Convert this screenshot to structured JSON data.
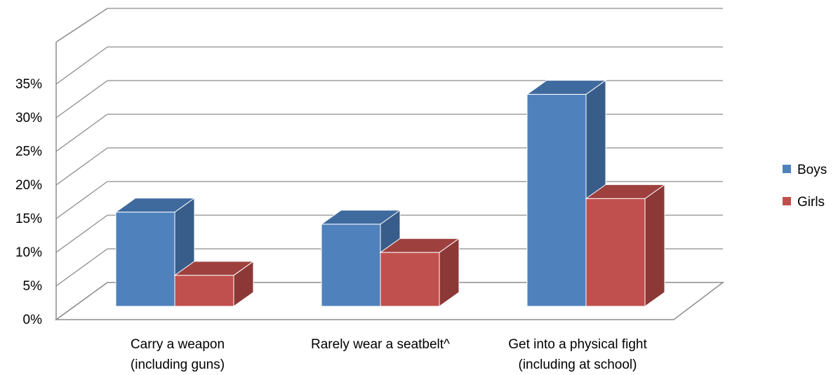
{
  "chart_data": {
    "type": "bar",
    "categories": [
      [
        "Carry a weapon",
        "(including guns)"
      ],
      [
        "Rarely wear a seatbelt^"
      ],
      [
        "Get into a physical fight",
        "(including at school)"
      ]
    ],
    "series": [
      {
        "name": "Boys",
        "values": [
          14,
          12.2,
          31.5
        ],
        "color": "#4F81BD",
        "side_color": "#385D8A",
        "top_color": "#3F6A9E"
      },
      {
        "name": "Girls",
        "values": [
          4.6,
          8,
          16
        ],
        "color": "#C0504D",
        "side_color": "#8C3836",
        "top_color": "#9E413E"
      }
    ],
    "ylim": [
      0,
      35
    ],
    "ytick_labels": [
      "0%",
      "5%",
      "10%",
      "15%",
      "20%",
      "25%",
      "30%",
      "35%"
    ],
    "grid": true,
    "legend_position": "right"
  }
}
